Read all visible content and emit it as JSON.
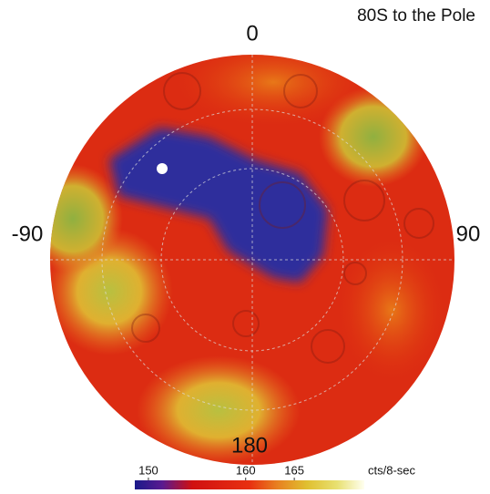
{
  "title": "80S to the Pole",
  "longitude_labels": {
    "top": "0",
    "left": "-90",
    "right": "90",
    "bottom": "180"
  },
  "colorbar": {
    "range": [
      148.6,
      172.2
    ],
    "ticks": [
      150,
      160,
      165
    ],
    "unit": "cts/8-sec"
  }
}
